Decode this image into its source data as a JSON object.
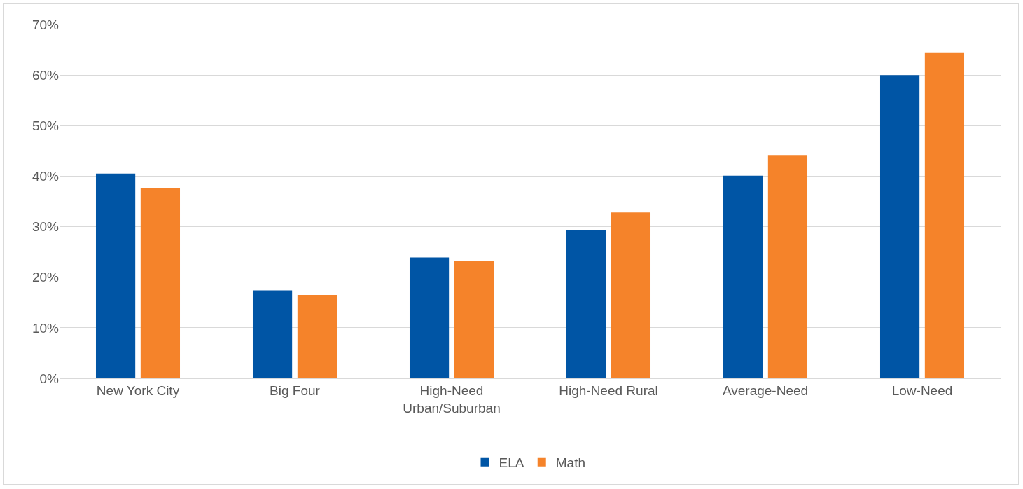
{
  "chart_data": {
    "type": "bar",
    "categories": [
      "New York City",
      "Big Four",
      "High-Need Urban/Suburban",
      "High-Need Rural",
      "Average-Need",
      "Low-Need"
    ],
    "series": [
      {
        "name": "ELA",
        "color": "#0055a5",
        "values": [
          40.5,
          17.4,
          23.9,
          29.3,
          40.1,
          60.0
        ]
      },
      {
        "name": "Math",
        "color": "#f5832a",
        "values": [
          37.6,
          16.5,
          23.2,
          32.8,
          44.2,
          64.5
        ]
      }
    ],
    "ylim": [
      0,
      70
    ],
    "yticks": [
      {
        "value": 0,
        "label": "0%"
      },
      {
        "value": 10,
        "label": "10%"
      },
      {
        "value": 20,
        "label": "20%"
      },
      {
        "value": 30,
        "label": "30%"
      },
      {
        "value": 40,
        "label": "40%"
      },
      {
        "value": 50,
        "label": "50%"
      },
      {
        "value": 60,
        "label": "60%"
      },
      {
        "value": 70,
        "label": "70%"
      }
    ],
    "grid": "y",
    "legend": "bottom"
  }
}
